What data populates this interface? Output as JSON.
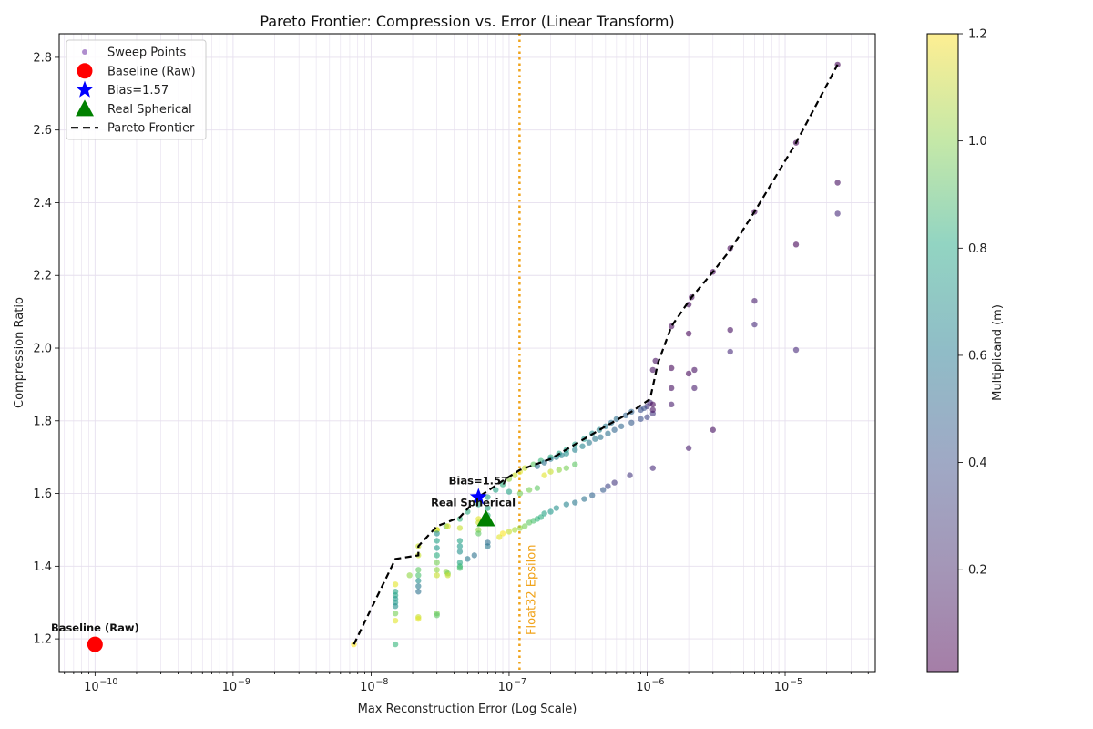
{
  "chart_data": {
    "type": "scatter",
    "title": "Pareto Frontier: Compression vs. Error (Linear Transform)",
    "xlabel": "Max Reconstruction Error (Log Scale)",
    "ylabel": "Compression Ratio",
    "xscale": "log",
    "xlim": [
      5.5e-11,
      4.5e-05
    ],
    "ylim": [
      1.11,
      2.865
    ],
    "x_ticks": [
      1e-10,
      1e-09,
      1e-08,
      1e-07,
      1e-06,
      1e-05
    ],
    "x_tick_labels": [
      "10^-10",
      "10^-9",
      "10^-8",
      "10^-7",
      "10^-6",
      "10^-5"
    ],
    "y_ticks": [
      1.2,
      1.4,
      1.6,
      1.8,
      2.0,
      2.2,
      2.4,
      2.6,
      2.8
    ],
    "y_tick_labels": [
      "1.2",
      "1.4",
      "1.6",
      "1.8",
      "2.0",
      "2.2",
      "2.4",
      "2.6",
      "2.8"
    ],
    "grid": true,
    "legend_position": "upper left",
    "legend": [
      {
        "label": "Sweep Points",
        "marker": "small-circle",
        "color": "#9467bd"
      },
      {
        "label": "Baseline (Raw)",
        "marker": "circle",
        "color": "#ff0000"
      },
      {
        "label": "Bias=1.57",
        "marker": "star",
        "color": "#0000ff"
      },
      {
        "label": "Real Spherical",
        "marker": "triangle",
        "color": "#008000"
      },
      {
        "label": "Pareto Frontier",
        "marker": "dashed-line",
        "color": "#000000"
      }
    ],
    "colorbar": {
      "label": "Multiplicand (m)",
      "colormap": "viridis",
      "alpha": 0.5,
      "range": [
        0.01,
        1.2
      ],
      "ticks": [
        0.2,
        0.4,
        0.6,
        0.8,
        1.0,
        1.2
      ],
      "tick_labels": [
        "0.2",
        "0.4",
        "0.6",
        "0.8",
        "1.0",
        "1.2"
      ]
    },
    "vline": {
      "x": 1.19e-07,
      "label": "Float32 Epsilon",
      "color": "#f0a31a",
      "style": "dotted"
    },
    "special_points": [
      {
        "name": "Baseline (Raw)",
        "x": 1e-10,
        "y": 1.185,
        "color": "#ff0000",
        "marker": "circle",
        "annotation": "Baseline (Raw)"
      },
      {
        "name": "Bias=1.57",
        "x": 6e-08,
        "y": 1.59,
        "color": "#0000ff",
        "marker": "star",
        "annotation": "Bias=1.57"
      },
      {
        "name": "Real Spherical",
        "x": 6.8e-08,
        "y": 1.53,
        "color": "#008000",
        "marker": "triangle",
        "annotation": "Real Spherical"
      }
    ],
    "pareto_frontier": {
      "x": [
        7.5e-09,
        1.5e-08,
        2.2e-08,
        2.2e-08,
        3e-08,
        4.4e-08,
        6e-08,
        9e-08,
        1.2e-07,
        2e-07,
        3e-07,
        5e-07,
        7.7e-07,
        1.05e-06,
        1.2e-06,
        1.5e-06,
        2.1e-06,
        3e-06,
        4e-06,
        6e-06,
        1.2e-05,
        2.4e-05
      ],
      "y": [
        1.185,
        1.42,
        1.43,
        1.455,
        1.51,
        1.535,
        1.59,
        1.635,
        1.665,
        1.695,
        1.735,
        1.785,
        1.825,
        1.86,
        1.96,
        2.06,
        2.14,
        2.21,
        2.27,
        2.375,
        2.565,
        2.78
      ]
    },
    "series": [
      {
        "name": "frontier-main",
        "m": "varies",
        "x": [
          7.5e-09,
          2.2e-08,
          3e-08,
          3.5e-08,
          4.4e-08,
          5e-08,
          6e-08,
          7e-08,
          8e-08,
          9e-08,
          1e-07,
          1.1e-07,
          1.2e-07,
          1.3e-07,
          1.5e-07,
          1.7e-07,
          2e-07,
          2.3e-07,
          2.6e-07,
          3e-07,
          3.5e-07,
          4e-07,
          4.5e-07,
          5e-07,
          5.5e-07,
          6e-07,
          7e-07,
          7.7e-07,
          9e-07,
          1e-06,
          1.05e-06,
          1.1e-06,
          1.15e-06,
          1.5e-06,
          2e-06,
          2.1e-06,
          3e-06,
          4e-06,
          6e-06,
          1.2e-05,
          2.4e-05
        ],
        "y": [
          1.185,
          1.455,
          1.5,
          1.51,
          1.53,
          1.55,
          1.57,
          1.59,
          1.61,
          1.625,
          1.64,
          1.65,
          1.66,
          1.67,
          1.68,
          1.69,
          1.7,
          1.71,
          1.72,
          1.735,
          1.75,
          1.765,
          1.775,
          1.785,
          1.795,
          1.805,
          1.815,
          1.825,
          1.83,
          1.84,
          1.85,
          1.94,
          1.965,
          2.06,
          2.12,
          2.14,
          2.21,
          2.275,
          2.375,
          2.565,
          2.78
        ],
        "m_values": [
          1.2,
          1.1,
          1.1,
          0.9,
          0.8,
          0.75,
          0.7,
          0.7,
          0.7,
          0.75,
          1.0,
          1.1,
          1.15,
          1.1,
          0.9,
          0.8,
          0.75,
          0.7,
          0.7,
          0.7,
          0.65,
          0.6,
          0.55,
          0.5,
          0.45,
          0.45,
          0.4,
          0.4,
          0.3,
          0.2,
          0.15,
          0.05,
          0.05,
          0.03,
          0.03,
          0.03,
          0.02,
          0.02,
          0.02,
          0.02,
          0.02
        ]
      },
      {
        "name": "second-branch",
        "x": [
          1.6e-07,
          1.8e-07,
          2e-07,
          2.2e-07,
          2.4e-07,
          2.6e-07,
          3e-07,
          3.4e-07,
          3.8e-07,
          4.2e-07,
          4.6e-07,
          5.2e-07,
          5.8e-07,
          6.5e-07,
          7.7e-07,
          9e-07,
          1e-06,
          1.1e-06
        ],
        "y": [
          1.675,
          1.685,
          1.695,
          1.7,
          1.705,
          1.71,
          1.72,
          1.73,
          1.74,
          1.75,
          1.755,
          1.765,
          1.775,
          1.785,
          1.795,
          1.805,
          1.81,
          1.82
        ],
        "m_values": [
          0.45,
          0.45,
          0.5,
          0.55,
          0.55,
          0.6,
          0.55,
          0.55,
          0.5,
          0.5,
          0.45,
          0.45,
          0.4,
          0.4,
          0.35,
          0.3,
          0.25,
          0.2
        ]
      },
      {
        "name": "third-branch",
        "x": [
          1e-07,
          1.2e-07,
          1.4e-07,
          1.6e-07,
          1.8e-07,
          2e-07,
          2.3e-07,
          2.6e-07,
          3e-07
        ],
        "y": [
          1.605,
          1.6,
          1.61,
          1.615,
          1.65,
          1.66,
          1.665,
          1.67,
          1.68
        ],
        "m_values": [
          0.7,
          0.95,
          0.95,
          0.9,
          1.15,
          1.1,
          1.0,
          0.95,
          0.9
        ]
      },
      {
        "name": "lower-branch",
        "x": [
          9e-08,
          1e-07,
          1.1e-07,
          1.2e-07,
          1.3e-07,
          1.4e-07,
          1.5e-07,
          1.6e-07,
          1.7e-07,
          1.8e-07,
          2e-07,
          2.2e-07,
          2.6e-07,
          3e-07,
          3.5e-07,
          4e-07,
          4.8e-07,
          5.2e-07,
          5.8e-07,
          7.5e-07,
          1.1e-06,
          2e-06,
          3e-06
        ],
        "y": [
          1.49,
          1.495,
          1.5,
          1.505,
          1.51,
          1.52,
          1.525,
          1.53,
          1.535,
          1.545,
          1.55,
          1.56,
          1.57,
          1.575,
          1.585,
          1.595,
          1.61,
          1.62,
          1.63,
          1.65,
          1.67,
          1.725,
          1.775
        ],
        "m_values": [
          1.2,
          1.1,
          1.05,
          1.0,
          0.95,
          0.9,
          0.85,
          0.8,
          0.75,
          0.7,
          0.65,
          0.6,
          0.55,
          0.5,
          0.45,
          0.4,
          0.35,
          0.25,
          0.2,
          0.2,
          0.15,
          0.1,
          0.05
        ]
      },
      {
        "name": "outliers-right",
        "x": [
          1.5e-06,
          1.5e-06,
          2e-06,
          2.2e-06,
          2.2e-06,
          2e-06,
          4e-06,
          4e-06,
          6e-06,
          6e-06,
          1.2e-05,
          1.2e-05,
          2.4e-05,
          2.4e-05,
          1.5e-06,
          1.1e-06,
          1.1e-06,
          9.5e-07
        ],
        "y": [
          1.945,
          1.89,
          1.93,
          1.94,
          1.89,
          2.04,
          2.05,
          1.99,
          2.13,
          2.065,
          2.285,
          1.995,
          2.455,
          2.37,
          1.845,
          1.845,
          1.83,
          1.835
        ],
        "m_values": [
          0.03,
          0.05,
          0.03,
          0.05,
          0.1,
          0.02,
          0.05,
          0.15,
          0.1,
          0.15,
          0.02,
          0.15,
          0.05,
          0.15,
          0.1,
          0.03,
          0.05,
          0.3
        ]
      },
      {
        "name": "low-error-columns",
        "x": [
          1.5e-08,
          1.5e-08,
          1.5e-08,
          1.5e-08,
          1.5e-08,
          1.5e-08,
          1.5e-08,
          1.5e-08,
          1.5e-08,
          1.9e-08,
          2.2e-08,
          2.2e-08,
          2.2e-08,
          2.2e-08,
          2.2e-08,
          2.2e-08,
          2.2e-08,
          2.2e-08,
          3e-08,
          3e-08,
          3e-08,
          3e-08,
          3e-08,
          3e-08,
          3e-08,
          3e-08,
          3e-08,
          3e-08,
          3.5e-08,
          3.6e-08,
          3.6e-08,
          3.6e-08,
          4.4e-08,
          4.4e-08,
          4.4e-08,
          4.4e-08,
          4.4e-08,
          4.4e-08,
          4.4e-08,
          5e-08,
          5.6e-08,
          6e-08,
          6e-08,
          6e-08,
          6e-08,
          7e-08,
          7e-08,
          7e-08,
          7e-08,
          8.5e-08
        ],
        "y": [
          1.35,
          1.33,
          1.32,
          1.31,
          1.3,
          1.29,
          1.27,
          1.25,
          1.185,
          1.375,
          1.39,
          1.375,
          1.36,
          1.345,
          1.33,
          1.26,
          1.255,
          1.43,
          1.47,
          1.45,
          1.43,
          1.41,
          1.39,
          1.375,
          1.27,
          1.265,
          1.5,
          1.49,
          1.385,
          1.38,
          1.375,
          1.51,
          1.47,
          1.455,
          1.44,
          1.41,
          1.4,
          1.395,
          1.505,
          1.42,
          1.43,
          1.53,
          1.52,
          1.5,
          1.49,
          1.455,
          1.465,
          1.56,
          1.54,
          1.48
        ],
        "m_values": [
          1.15,
          0.7,
          0.7,
          0.65,
          0.65,
          0.6,
          0.95,
          1.15,
          0.8,
          1.0,
          0.9,
          0.85,
          0.6,
          0.5,
          0.45,
          1.1,
          1.15,
          1.1,
          0.7,
          0.65,
          0.75,
          0.95,
          1.0,
          1.1,
          0.95,
          0.9,
          1.15,
          0.6,
          1.0,
          0.95,
          1.1,
          1.15,
          0.7,
          0.65,
          0.6,
          0.7,
          0.8,
          0.85,
          1.1,
          0.5,
          0.45,
          1.15,
          1.1,
          1.0,
          0.9,
          0.5,
          0.45,
          0.7,
          0.75,
          1.15
        ]
      }
    ]
  }
}
